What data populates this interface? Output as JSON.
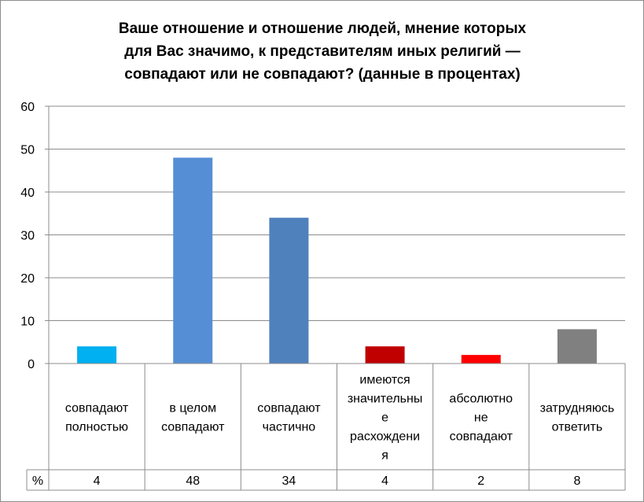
{
  "chart_data": {
    "type": "bar",
    "title_lines": [
      "Ваше отношение и отношение людей, мнение которых",
      "для Вас значимо, к представителям иных религий —",
      "совпадают или не совпадают? (данные в процентах)"
    ],
    "categories": [
      [
        "совпадают",
        "полностью"
      ],
      [
        "в целом",
        "совпадают"
      ],
      [
        "совпадают",
        "частично"
      ],
      [
        "имеются",
        "значительны",
        "е",
        "расхождени",
        "я"
      ],
      [
        "абсолютно",
        "не",
        "совпадают"
      ],
      [
        "затрудняюсь",
        "ответить"
      ]
    ],
    "values": [
      4,
      48,
      34,
      4,
      2,
      8
    ],
    "value_labels": [
      "4",
      "48",
      "34",
      "4",
      "2",
      "8"
    ],
    "bar_colors": [
      "#00b0f0",
      "#558ed5",
      "#4f81bd",
      "#c00000",
      "#ff0000",
      "#808080"
    ],
    "y_ticks": [
      "0",
      "10",
      "20",
      "30",
      "40",
      "50",
      "60"
    ],
    "ylim": [
      0,
      60
    ],
    "table_row_label": "%",
    "grid": true,
    "legend": "none"
  }
}
